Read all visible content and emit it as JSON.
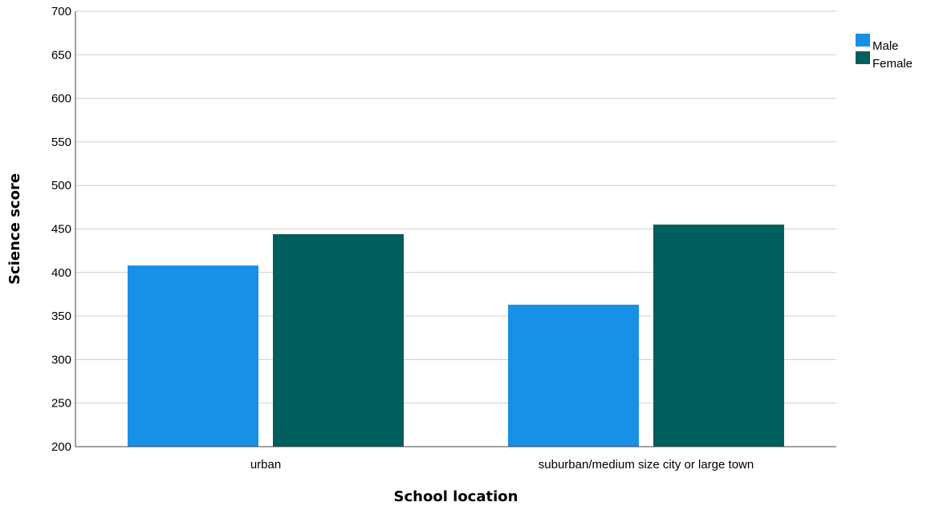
{
  "chart_data": {
    "type": "bar",
    "title": "",
    "xlabel": "School location",
    "ylabel": "Science score",
    "categories": [
      "urban",
      "suburban/medium size city or large town"
    ],
    "series": [
      {
        "name": "Male",
        "color": "#1790E6",
        "values": [
          408,
          363
        ]
      },
      {
        "name": "Female",
        "color": "#005E5C",
        "values": [
          444,
          455
        ]
      }
    ],
    "ylim": [
      200,
      700
    ],
    "yticks": [
      200,
      250,
      300,
      350,
      400,
      450,
      500,
      550,
      600,
      650,
      700
    ],
    "grid": true,
    "legend_position": "top-right"
  }
}
